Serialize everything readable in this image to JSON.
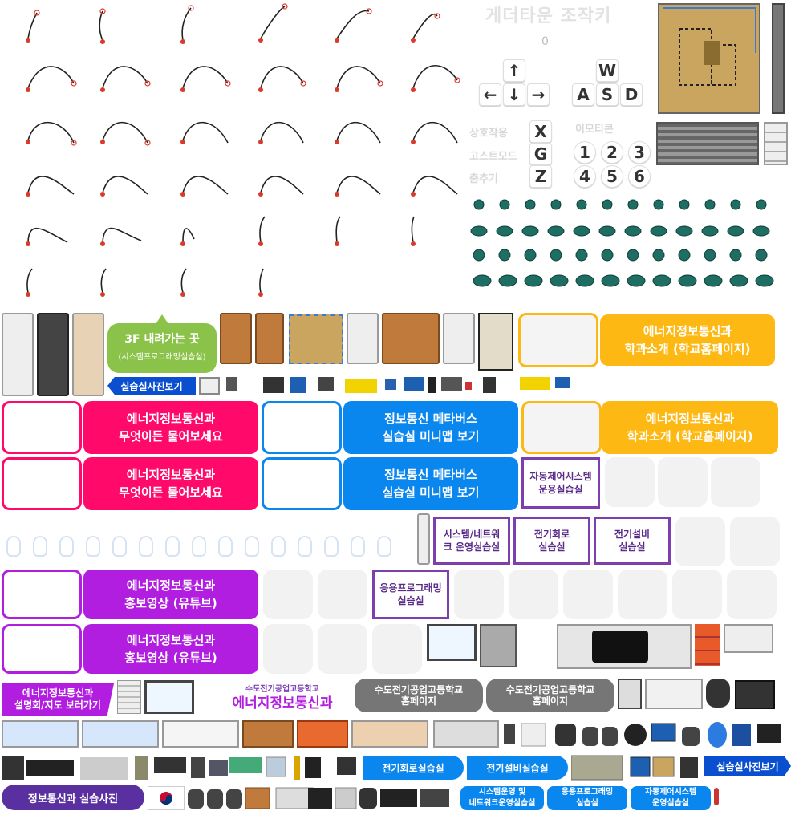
{
  "colors": {
    "pink": "#ff0a6b",
    "blue": "#0a86ef",
    "yellow": "#fdb813",
    "purple": "#b21ee0",
    "green": "#8bc34a",
    "violet": "#7b3fb0",
    "gray": "#767676",
    "navy": "#0b4fd1",
    "darkpurple": "#5a2fa0"
  },
  "controls": {
    "title": "게더타운 조작키",
    "zoom_label": "0",
    "arrows": [
      "↑",
      "←",
      "↓",
      "→"
    ],
    "wasd": [
      "W",
      "A",
      "S",
      "D"
    ],
    "actions": [
      {
        "label": "상호작용",
        "key": "X"
      },
      {
        "label": "고스트모드",
        "key": "G"
      },
      {
        "label": "춤추기",
        "key": "Z"
      }
    ],
    "emote_title": "이모티콘",
    "emotes": [
      "1",
      "2",
      "3",
      "4",
      "5",
      "6"
    ]
  },
  "speech": {
    "line1": "3F 내려가는 곳",
    "line2": "(시스템프로그래밍실습실)"
  },
  "tags": {
    "lab_photos": "실습실사진보기"
  },
  "banners": {
    "dept_intro": "에너지정보통신과\n학과소개 (학교홈페이지)",
    "ask": "에너지정보통신과\n무엇이든 물어보세요",
    "minimap": "정보통신 메타버스\n실습실 미니맵 보기",
    "promo": "에너지정보통신과\n홍보영상 (유튜브)"
  },
  "signs": {
    "auto": "자동제어시스템\n운용실습실",
    "sysnet": "시스템/네트워\n크 운영실습실",
    "circuit": "전기회로\n실습실",
    "facility": "전기설비\n실습실",
    "app": "응용프로그래밍\n실습실"
  },
  "labels": {
    "info_session": "에너지정보통신과\n설명회/지도 보러가기",
    "school_small": "수도전기공업고등학교",
    "school_big": "에너지정보통신과",
    "homepage": "수도전기공업고등학교\n홈페이지",
    "dept_photos": "정보통신과 실습사진",
    "circuit_lab": "전기회로실습실",
    "facility_lab": "전기설비실습실",
    "sysnet_lab": "시스템운영 및\n네트워크운영실습실",
    "app_lab": "응용프로그래밍\n실습실",
    "auto_lab": "자동제어시스템\n운영실습실"
  }
}
